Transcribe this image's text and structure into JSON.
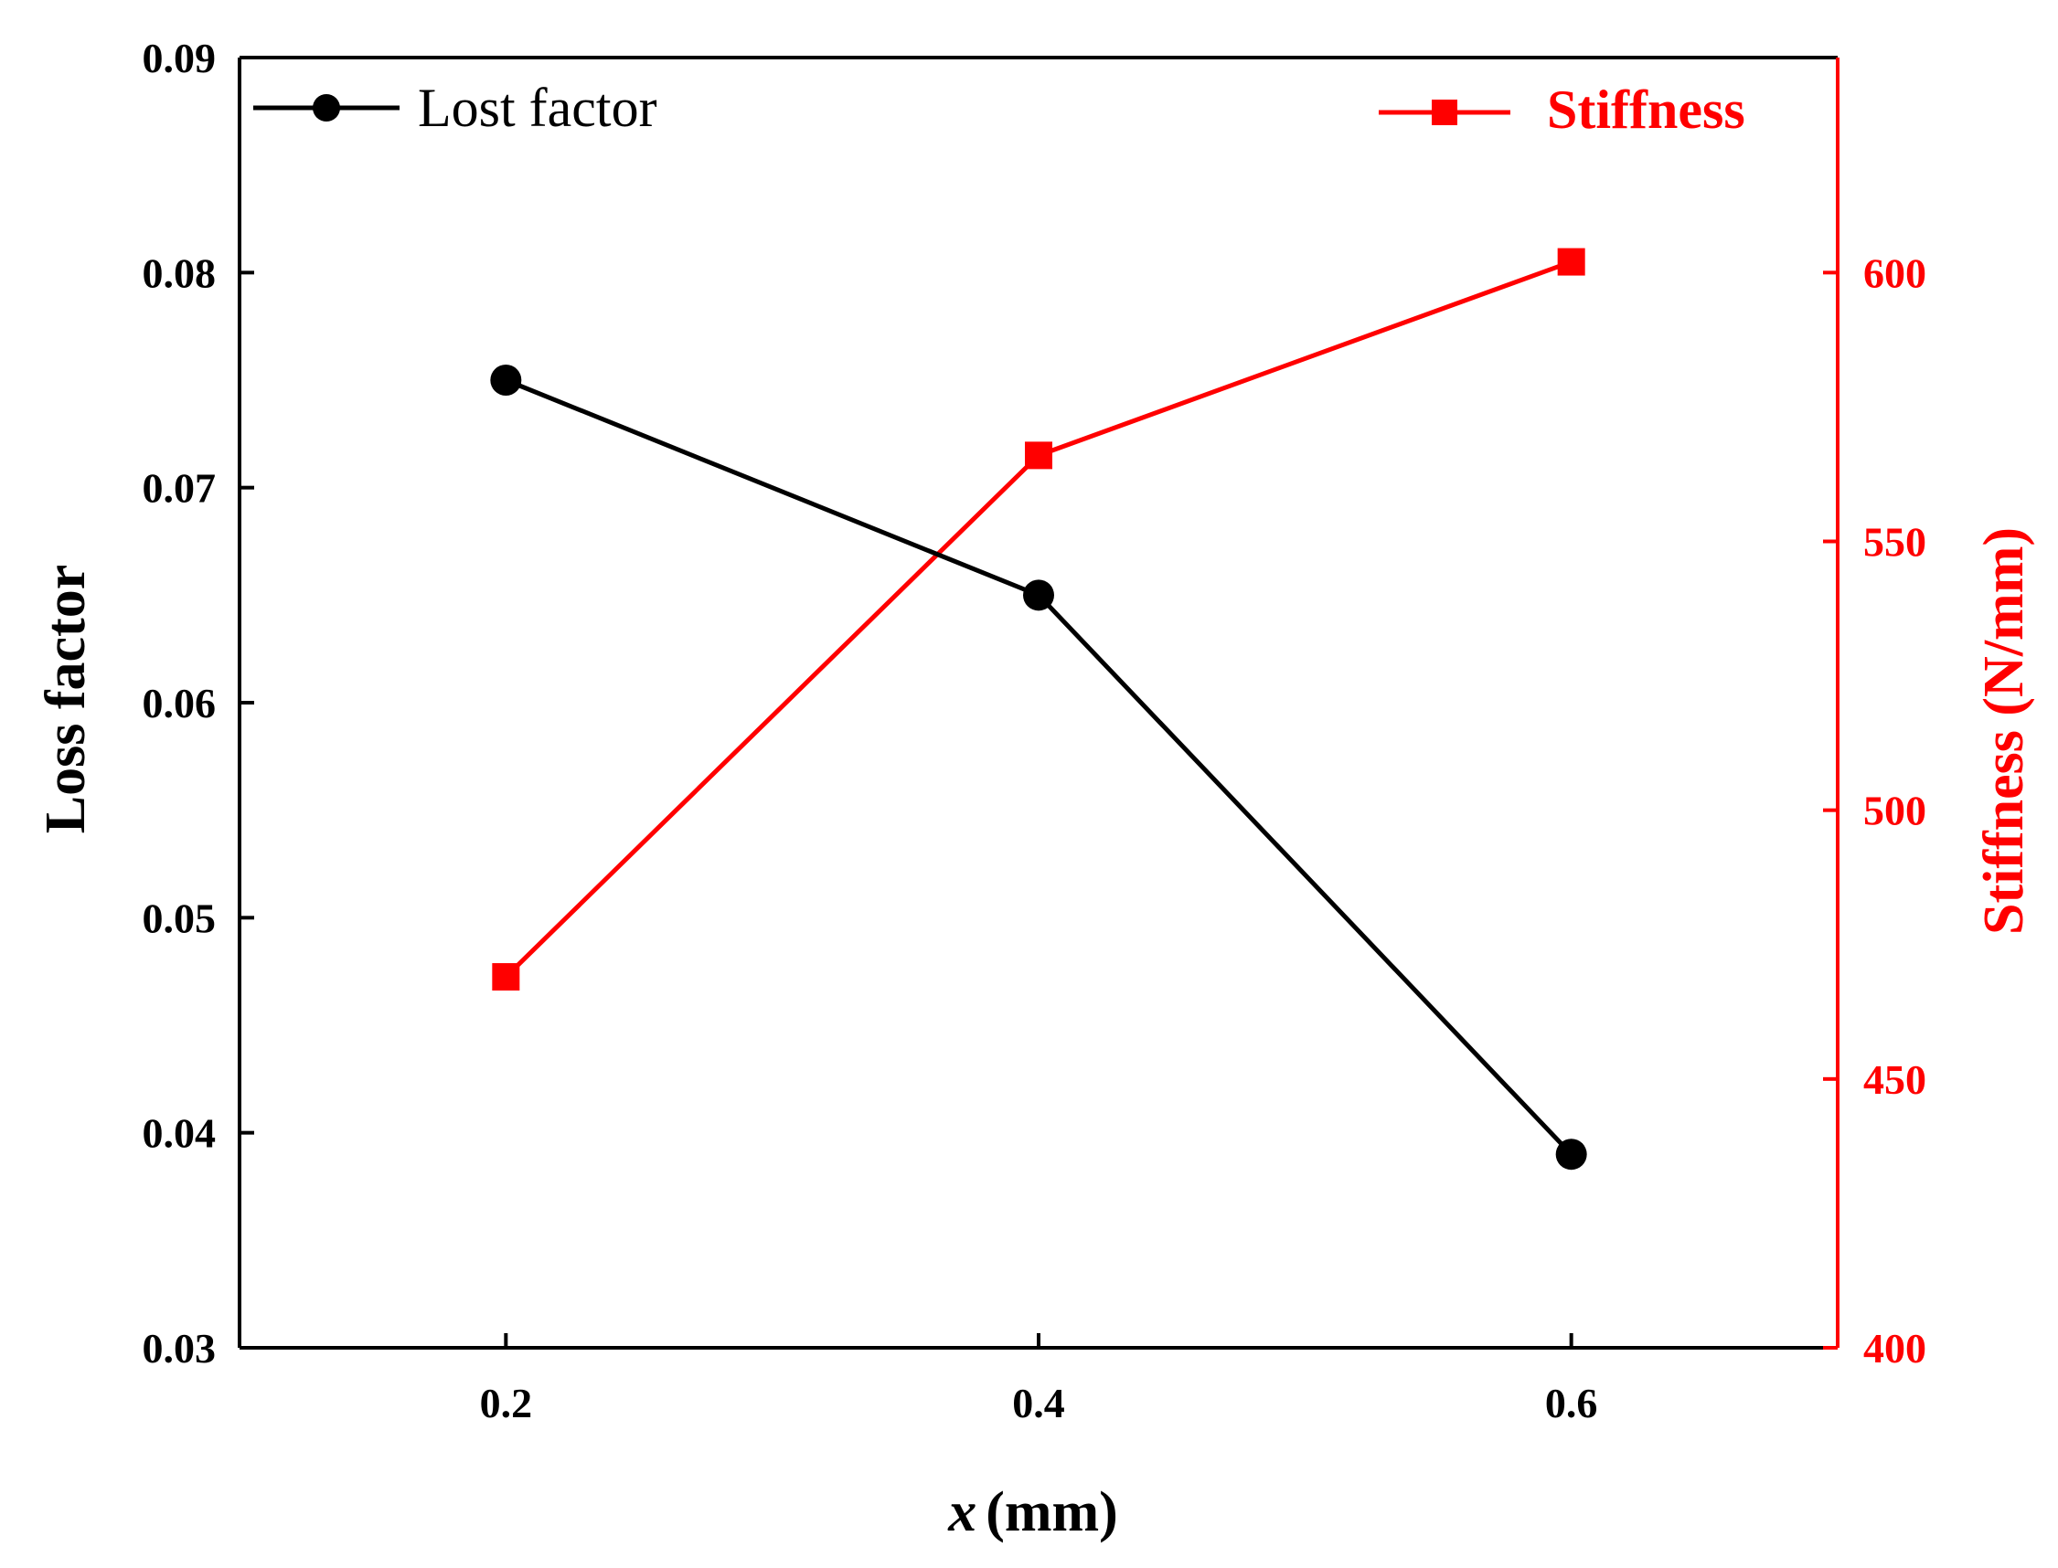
{
  "chart_data": {
    "type": "line",
    "x": [
      0.2,
      0.4,
      0.6
    ],
    "x_tick_labels": [
      "0.2",
      "0.4",
      "0.6"
    ],
    "xlim": [
      0.1,
      0.7
    ],
    "xlabel": {
      "var": "x",
      "unit": "(mm)"
    },
    "y_left": {
      "label": "Loss factor",
      "lim": [
        0.03,
        0.09
      ],
      "ticks": [
        0.03,
        0.04,
        0.05,
        0.06,
        0.07,
        0.08,
        0.09
      ],
      "tick_labels": [
        "0.03",
        "0.04",
        "0.05",
        "0.06",
        "0.07",
        "0.08",
        "0.09"
      ],
      "color": "#000000"
    },
    "y_right": {
      "label": "Stiffness (N/mm)",
      "lim": [
        400,
        640
      ],
      "ticks": [
        400,
        450,
        500,
        550,
        600
      ],
      "tick_labels": [
        "400",
        "450",
        "500",
        "550",
        "600"
      ],
      "color": "#ff0000"
    },
    "series": [
      {
        "name": "Lost factor",
        "axis": "left",
        "color": "#000000",
        "marker": "circle",
        "values": [
          0.075,
          0.065,
          0.039
        ]
      },
      {
        "name": "Stiffness",
        "axis": "right",
        "color": "#ff0000",
        "marker": "square",
        "values": [
          469,
          566,
          602
        ]
      }
    ],
    "legend": {
      "left_entry": "Lost factor",
      "right_entry": "Stiffness"
    }
  }
}
